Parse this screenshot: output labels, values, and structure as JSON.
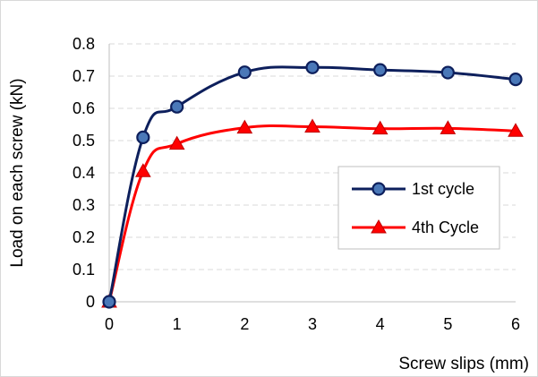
{
  "chart_data": {
    "type": "line",
    "title": "",
    "xlabel": "Screw slips (mm)",
    "ylabel": "Load on each screw (kN)",
    "xlim": [
      0,
      6
    ],
    "ylim": [
      0,
      0.8
    ],
    "x_ticks": [
      "0",
      "1",
      "2",
      "3",
      "4",
      "5",
      "6"
    ],
    "y_ticks": [
      "0",
      "0.1",
      "0.2",
      "0.3",
      "0.4",
      "0.5",
      "0.6",
      "0.7",
      "0.8"
    ],
    "grid": "horizontal dashed",
    "legend_position": "right-middle",
    "series": [
      {
        "name": "1st cycle",
        "color": "#0d1f5c",
        "marker": "circle",
        "x": [
          0,
          0.5,
          1,
          2,
          3,
          4,
          5,
          6
        ],
        "y": [
          0,
          0.51,
          0.605,
          0.712,
          0.727,
          0.719,
          0.711,
          0.69
        ]
      },
      {
        "name": "4th Cycle",
        "color": "#ff0000",
        "marker": "triangle",
        "x": [
          0,
          0.5,
          1,
          2,
          3,
          4,
          5,
          6
        ],
        "y": [
          0,
          0.405,
          0.49,
          0.54,
          0.543,
          0.537,
          0.538,
          0.53
        ]
      }
    ]
  }
}
